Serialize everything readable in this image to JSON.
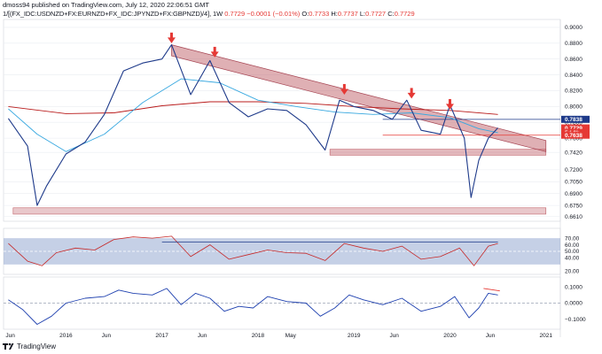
{
  "header": {
    "publisher_line": "dmoss94 published on TradingView.com, July 12, 2020 22:06:51 GMT",
    "symbol": "1/[(FX_IDC:USDNZD+FX:EURNZD+FX_IDC:JPYNZD+FX:GBPNZD)/4], 1W",
    "ohlc": [
      {
        "label": "",
        "value": "0.7729"
      },
      {
        "label": "",
        "value": "−0.0001 (−0.01%)"
      },
      {
        "label": "O:",
        "value": "0.7733"
      },
      {
        "label": "H:",
        "value": "0.7737"
      },
      {
        "label": "L:",
        "value": "0.7727"
      },
      {
        "label": "C:",
        "value": "0.7729"
      }
    ]
  },
  "brand": {
    "name": "TradingView",
    "icon": "tradingview-logo-icon"
  },
  "colors": {
    "price": "#1e3a8a",
    "sma_long": "#b91c1c",
    "sma_mid": "#38a8e0",
    "channel": "#c0616a",
    "arrow": "#e53935",
    "rsi": "#c62828",
    "rsi_band": "#7f97c8",
    "osc": "#1e40af",
    "grid": "#e9ecf1"
  },
  "chart_data": [
    {
      "type": "line",
      "title": "",
      "x_labels": [
        "Jun",
        "2016",
        "Jun",
        "2017",
        "Jun",
        "2018",
        "May",
        "2019",
        "Jun",
        "2020",
        "Jun",
        "2021"
      ],
      "y_ticks": [
        "0.9000",
        "0.8800",
        "0.8600",
        "0.8400",
        "0.8200",
        "0.8000",
        "0.7800",
        "0.7600",
        "0.7420",
        "0.7200",
        "0.7050",
        "0.6900",
        "0.6750",
        "0.6610"
      ],
      "ylim": [
        0.655,
        0.91
      ],
      "grid": true,
      "legend": "none",
      "series": [
        {
          "kind": "price",
          "x": [
            2015.4,
            2015.6,
            2015.7,
            2015.8,
            2016.0,
            2016.2,
            2016.4,
            2016.6,
            2016.8,
            2017.0,
            2017.1,
            2017.3,
            2017.5,
            2017.7,
            2017.9,
            2018.1,
            2018.3,
            2018.5,
            2018.7,
            2018.85,
            2019.0,
            2019.2,
            2019.4,
            2019.55,
            2019.7,
            2019.9,
            2020.0,
            2020.15,
            2020.22,
            2020.3,
            2020.4,
            2020.5
          ],
          "y": [
            0.785,
            0.75,
            0.675,
            0.7,
            0.74,
            0.755,
            0.79,
            0.845,
            0.855,
            0.86,
            0.878,
            0.815,
            0.858,
            0.805,
            0.787,
            0.797,
            0.795,
            0.777,
            0.745,
            0.808,
            0.8,
            0.795,
            0.784,
            0.808,
            0.77,
            0.765,
            0.802,
            0.76,
            0.685,
            0.732,
            0.76,
            0.773
          ]
        },
        {
          "kind": "sma-long",
          "x": [
            2015.4,
            2016.0,
            2016.5,
            2017.0,
            2017.5,
            2018.0,
            2018.5,
            2019.0,
            2019.5,
            2020.0,
            2020.5
          ],
          "y": [
            0.8,
            0.791,
            0.792,
            0.801,
            0.806,
            0.806,
            0.804,
            0.8,
            0.797,
            0.795,
            0.79
          ]
        },
        {
          "kind": "sma-mid",
          "x": [
            2015.4,
            2015.7,
            2016.0,
            2016.4,
            2016.8,
            2017.2,
            2017.6,
            2018.0,
            2018.4,
            2018.8,
            2019.2,
            2019.6,
            2020.0,
            2020.3,
            2020.5
          ],
          "y": [
            0.797,
            0.765,
            0.743,
            0.765,
            0.805,
            0.835,
            0.83,
            0.808,
            0.8,
            0.793,
            0.79,
            0.792,
            0.786,
            0.772,
            0.767
          ]
        }
      ],
      "annotations": {
        "descending_channel": {
          "start": [
            2017.1,
            0.878
          ],
          "end": [
            2021.0,
            0.757
          ],
          "width": 0.014
        },
        "support_zone_upper": {
          "x": [
            2018.75,
            2021.0
          ],
          "y": [
            0.7385,
            0.746
          ]
        },
        "support_zone_lower": {
          "x": [
            2015.45,
            2021.0
          ],
          "y": [
            0.664,
            0.672
          ]
        },
        "arrows": [
          {
            "x": 2017.1,
            "y": 0.88
          },
          {
            "x": 2017.55,
            "y": 0.862
          },
          {
            "x": 2018.9,
            "y": 0.815
          },
          {
            "x": 2019.6,
            "y": 0.81
          },
          {
            "x": 2020.0,
            "y": 0.796
          }
        ],
        "price_labels": [
          {
            "text": "0.7838",
            "y": 0.7838,
            "bg": "#1e3a8a"
          },
          {
            "text": "0.7729",
            "y": 0.7729,
            "bg": "#e53935"
          },
          {
            "text": "5d 0h",
            "y": 0.7672,
            "bg": "#e53935"
          },
          {
            "text": "0.7638",
            "y": 0.7638,
            "bg": "#e53935"
          }
        ],
        "reference_lines": [
          {
            "y": 0.7838,
            "color": "#1e3a8a"
          },
          {
            "y": 0.7638,
            "color": "#e53935"
          }
        ]
      }
    },
    {
      "type": "line",
      "kind": "rsi",
      "y_ticks": [
        "70.00",
        "60.00",
        "50.00",
        "40.00",
        "20.00"
      ],
      "ylim": [
        15,
        85
      ],
      "band": [
        30,
        70
      ],
      "midline": 50,
      "x": [
        2015.4,
        2015.6,
        2015.75,
        2015.9,
        2016.1,
        2016.3,
        2016.5,
        2016.7,
        2016.9,
        2017.1,
        2017.3,
        2017.5,
        2017.7,
        2017.9,
        2018.1,
        2018.3,
        2018.5,
        2018.7,
        2018.9,
        2019.1,
        2019.3,
        2019.5,
        2019.7,
        2019.9,
        2020.1,
        2020.25,
        2020.4,
        2020.5
      ],
      "y": [
        62,
        35,
        28,
        48,
        55,
        52,
        68,
        72,
        70,
        73,
        42,
        60,
        38,
        45,
        52,
        48,
        47,
        36,
        62,
        55,
        50,
        58,
        38,
        42,
        55,
        28,
        58,
        62
      ],
      "trendline": {
        "x": [
          2017.0,
          2020.5
        ],
        "y": [
          64,
          64
        ]
      }
    },
    {
      "type": "line",
      "kind": "oscillator",
      "y_ticks": [
        "0.1000",
        "0.0000",
        "−0.1000"
      ],
      "ylim": [
        -0.16,
        0.16
      ],
      "zero_line": 0,
      "x": [
        2015.4,
        2015.55,
        2015.7,
        2015.85,
        2016.0,
        2016.2,
        2016.4,
        2016.55,
        2016.7,
        2016.9,
        2017.05,
        2017.2,
        2017.35,
        2017.5,
        2017.65,
        2017.8,
        2017.95,
        2018.1,
        2018.3,
        2018.5,
        2018.65,
        2018.8,
        2018.95,
        2019.1,
        2019.3,
        2019.5,
        2019.7,
        2019.9,
        2020.05,
        2020.2,
        2020.3,
        2020.4,
        2020.5
      ],
      "y": [
        0.02,
        -0.04,
        -0.13,
        -0.08,
        0.0,
        0.03,
        0.04,
        0.08,
        0.06,
        0.05,
        0.09,
        -0.01,
        0.06,
        0.03,
        -0.05,
        -0.02,
        -0.03,
        0.04,
        0.01,
        0.0,
        -0.08,
        -0.03,
        0.05,
        0.02,
        -0.01,
        0.03,
        -0.05,
        -0.02,
        0.04,
        -0.09,
        -0.03,
        0.06,
        0.05
      ],
      "trendline": {
        "x": [
          2020.35,
          2020.52
        ],
        "y": [
          0.09,
          0.075
        ]
      }
    }
  ]
}
